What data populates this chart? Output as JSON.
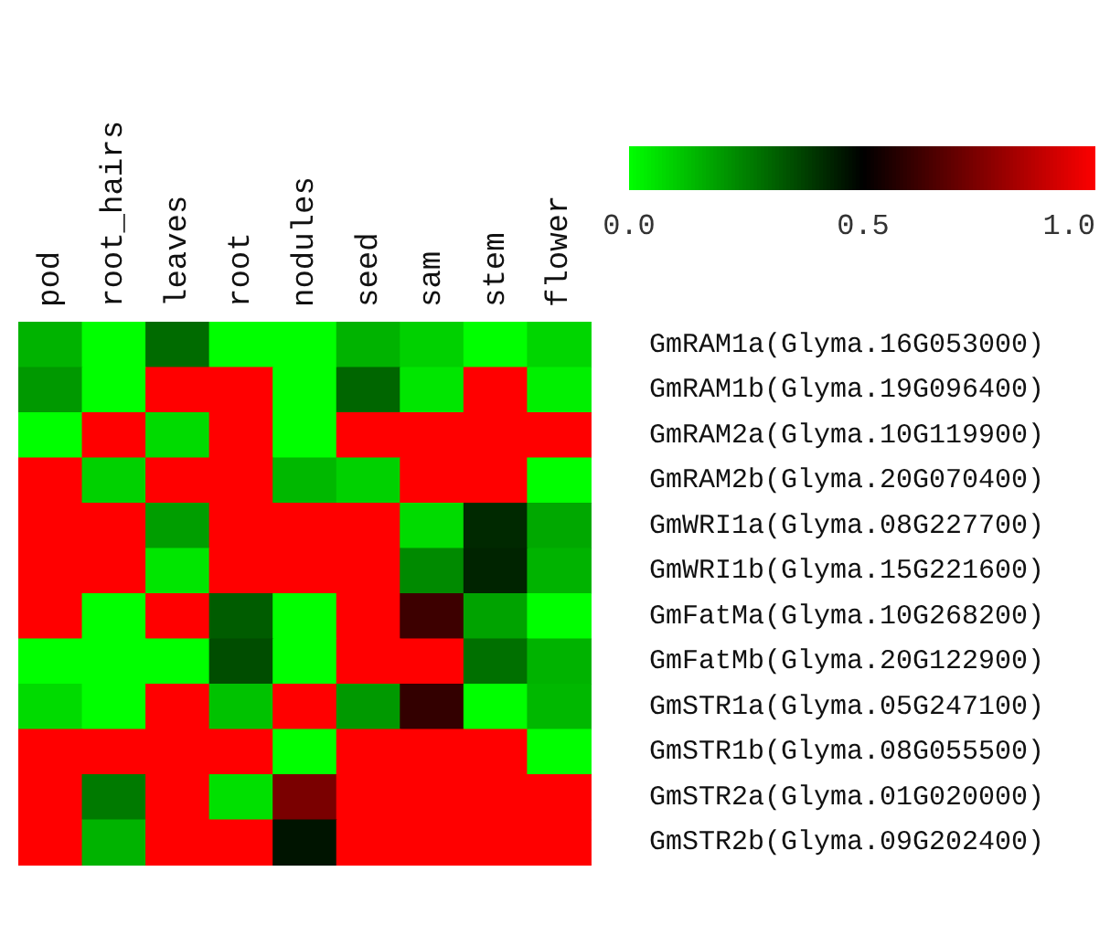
{
  "chart_data": {
    "type": "heatmap",
    "categories": [
      "pod",
      "root_hairs",
      "leaves",
      "root",
      "nodules",
      "seed",
      "sam",
      "stem",
      "flower"
    ],
    "y_categories": [
      "GmRAM1a(Glyma.16G053000)",
      "GmRAM1b(Glyma.19G096400)",
      "GmRAM2a(Glyma.10G119900)",
      "GmRAM2b(Glyma.20G070400)",
      "GmWRI1a(Glyma.08G227700)",
      "GmWRI1b(Glyma.15G221600)",
      "GmFatMa(Glyma.10G268200)",
      "GmFatMb(Glyma.20G122900)",
      "GmSTR1a(Glyma.05G247100)",
      "GmSTR1b(Glyma.08G055500)",
      "GmSTR2a(Glyma.01G020000)",
      "GmSTR2b(Glyma.09G202400)"
    ],
    "cells": [
      [
        0.15,
        0,
        0.29,
        0,
        0,
        0.15,
        0.09,
        0,
        0.08
      ],
      [
        0.2,
        0,
        1,
        1,
        0,
        0.3,
        0.05,
        1,
        0.03
      ],
      [
        0,
        1,
        0.07,
        1,
        0,
        1,
        1,
        1,
        1
      ],
      [
        1,
        0.09,
        1,
        1,
        0.14,
        0.09,
        1,
        1,
        0
      ],
      [
        1,
        1,
        0.19,
        1,
        1,
        1,
        0.07,
        0.42,
        0.17
      ],
      [
        1,
        1,
        0.05,
        1,
        1,
        1,
        0.23,
        0.43,
        0.15
      ],
      [
        1,
        0,
        1,
        0.32,
        0,
        1,
        0.62,
        0.18,
        0
      ],
      [
        0,
        0,
        0,
        0.35,
        0,
        1,
        1,
        0.28,
        0.15
      ],
      [
        0.07,
        0,
        1,
        0.12,
        1,
        0.2,
        0.6,
        0,
        0.14
      ],
      [
        1,
        1,
        1,
        1,
        0,
        1,
        1,
        1,
        0
      ],
      [
        1,
        0.26,
        1,
        0.06,
        0.74,
        1,
        1,
        1,
        1
      ],
      [
        1,
        0.15,
        1,
        1,
        0.46,
        1,
        1,
        1,
        1
      ]
    ],
    "clim": [
      0,
      1
    ],
    "cticks": [
      {
        "value": 0,
        "label": "0.0"
      },
      0.5,
      {
        "value": 1,
        "label": "1.0"
      }
    ]
  }
}
